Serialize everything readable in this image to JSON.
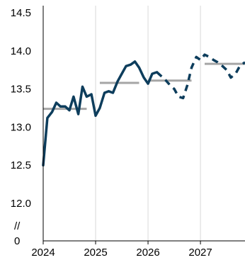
{
  "chart_data": {
    "type": "line",
    "title": "",
    "xlabel": "",
    "ylabel": "",
    "ylim": [
      12.0,
      14.5
    ],
    "y_ticks": [
      "14.5",
      "14.0",
      "13.5",
      "13.0",
      "12.5",
      "12.0"
    ],
    "y_break_label": "//",
    "y_zero_label": "0",
    "x_ticks": [
      {
        "label": "2024",
        "value": 2024
      },
      {
        "label": "2025",
        "value": 2025
      },
      {
        "label": "2026",
        "value": 2026
      },
      {
        "label": "2027",
        "value": 2027
      }
    ],
    "xlim": [
      2024,
      2027.85
    ],
    "grid": "vertical",
    "colors": {
      "line": "#0d3d5c",
      "annual_average": "#a6a6a6"
    },
    "series": [
      {
        "style": "solid",
        "x": [
          2024.0,
          2024.08,
          2024.17,
          2024.25,
          2024.33,
          2024.42,
          2024.5,
          2024.58,
          2024.67,
          2024.75,
          2024.83,
          2024.92,
          2025.0,
          2025.08,
          2025.17,
          2025.25,
          2025.33,
          2025.42,
          2025.5,
          2025.58,
          2025.67,
          2025.75,
          2025.83,
          2025.92,
          2026.0,
          2026.08,
          2026.17
        ],
        "y": [
          12.5,
          13.12,
          13.2,
          13.32,
          13.27,
          13.27,
          13.22,
          13.4,
          13.17,
          13.53,
          13.4,
          13.43,
          13.15,
          13.25,
          13.45,
          13.47,
          13.45,
          13.6,
          13.7,
          13.8,
          13.82,
          13.86,
          13.78,
          13.65,
          13.57,
          13.7,
          13.72
        ]
      },
      {
        "style": "dashed",
        "x": [
          2026.17,
          2026.25,
          2026.33,
          2026.42,
          2026.5,
          2026.58,
          2026.67,
          2026.75,
          2026.83,
          2026.92,
          2027.0,
          2027.08,
          2027.17,
          2027.25,
          2027.33,
          2027.42,
          2027.5,
          2027.58,
          2027.67,
          2027.75,
          2027.85
        ],
        "y": [
          13.72,
          13.67,
          13.62,
          13.55,
          13.5,
          13.4,
          13.38,
          13.55,
          13.78,
          13.92,
          13.88,
          13.95,
          13.92,
          13.88,
          13.85,
          13.8,
          13.75,
          13.65,
          13.7,
          13.8,
          13.85
        ]
      }
    ],
    "annual_averages": [
      {
        "year": 2024,
        "x_start": 2024.0,
        "x_end": 2024.83,
        "value": 13.24
      },
      {
        "year": 2025,
        "x_start": 2025.08,
        "x_end": 2025.83,
        "value": 13.58
      },
      {
        "year": 2026,
        "x_start": 2026.0,
        "x_end": 2026.83,
        "value": 13.61
      },
      {
        "year": 2027,
        "x_start": 2027.08,
        "x_end": 2027.85,
        "value": 13.83
      }
    ]
  }
}
